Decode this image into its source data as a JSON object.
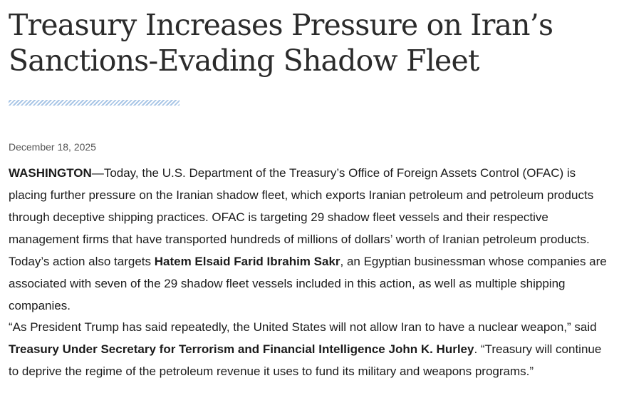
{
  "article": {
    "title": "Treasury Increases Pressure on Iran’s Sanctions-Evading Shadow Fleet",
    "accent_color": "#a9c6e6",
    "date": "December 18, 2025",
    "p1": {
      "dateline": "WASHINGTON",
      "text1": "—Today, the U.S. Department of the Treasury’s Office of Foreign Assets Control (OFAC) is placing further pressure on the Iranian shadow fleet, which exports Iranian petroleum and petroleum products through deceptive shipping practices.  OFAC is targeting 29 shadow fleet vessels and their respective management firms that have transported hundreds of millions of dollars’ worth of Iranian petroleum products.  Today’s action also targets ",
      "name": "Hatem Elsaid Farid Ibrahim Sakr",
      "text2": ", an Egyptian businessman whose companies are associated with seven of the 29 shadow fleet vessels included in this action, as well as multiple shipping companies."
    },
    "p2": {
      "text1": "“As President Trump has said repeatedly, the United States will not allow Iran to have a nuclear weapon,” said ",
      "speaker": "Treasury Under Secretary for Terrorism and Financial Intelligence John K. Hurley",
      "text2": ".  “Treasury will continue to deprive the regime of the petroleum revenue it uses to fund its military and weapons programs.”"
    }
  }
}
